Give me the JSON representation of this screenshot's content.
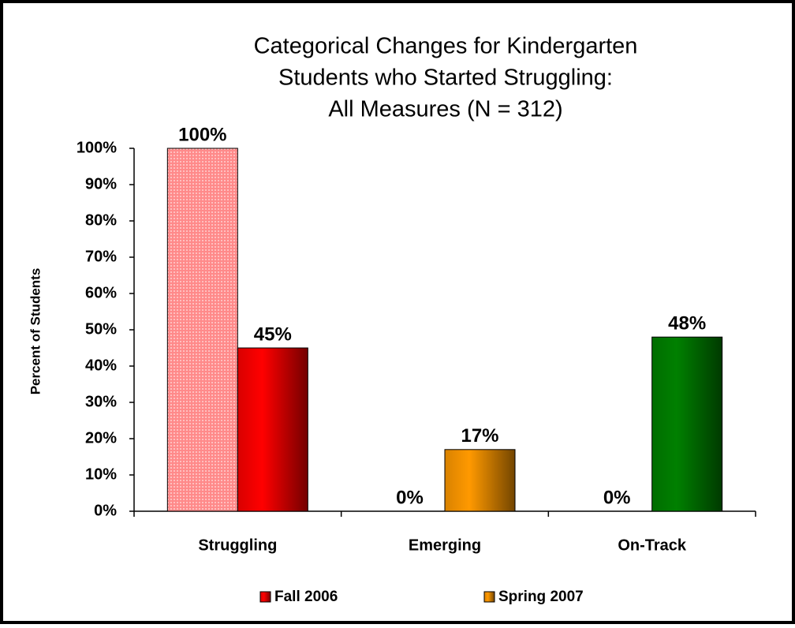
{
  "chart_data": {
    "type": "bar",
    "title": [
      "Categorical Changes for Kindergarten",
      "Students who Started Struggling:",
      "All Measures (N = 312)"
    ],
    "ylabel": "Percent of Students",
    "categories": [
      "Struggling",
      "Emerging",
      "On-Track"
    ],
    "series": [
      {
        "name": "Fall 2006",
        "color": "#ff0000",
        "colors": [
          "#ff8a8a",
          "#ff8a8a",
          "#ff8a8a"
        ],
        "values": [
          100,
          0,
          0
        ],
        "value_labels": [
          "100%",
          "0%",
          "0%"
        ]
      },
      {
        "name": "Spring 2007",
        "color": "#ff9900",
        "colors": [
          "#ff0000",
          "#ff9900",
          "#008000"
        ],
        "values": [
          45,
          17,
          48
        ],
        "value_labels": [
          "45%",
          "17%",
          "48%"
        ]
      }
    ],
    "ylim": [
      0,
      100
    ],
    "yticks": [
      {
        "value": 0,
        "label": "0%"
      },
      {
        "value": 10,
        "label": "10%"
      },
      {
        "value": 20,
        "label": "20%"
      },
      {
        "value": 30,
        "label": "30%"
      },
      {
        "value": 40,
        "label": "40%"
      },
      {
        "value": 50,
        "label": "50%"
      },
      {
        "value": 60,
        "label": "60%"
      },
      {
        "value": 70,
        "label": "70%"
      },
      {
        "value": 80,
        "label": "80%"
      },
      {
        "value": 90,
        "label": "90%"
      },
      {
        "value": 100,
        "label": "100%"
      }
    ],
    "legend": "bottom"
  }
}
